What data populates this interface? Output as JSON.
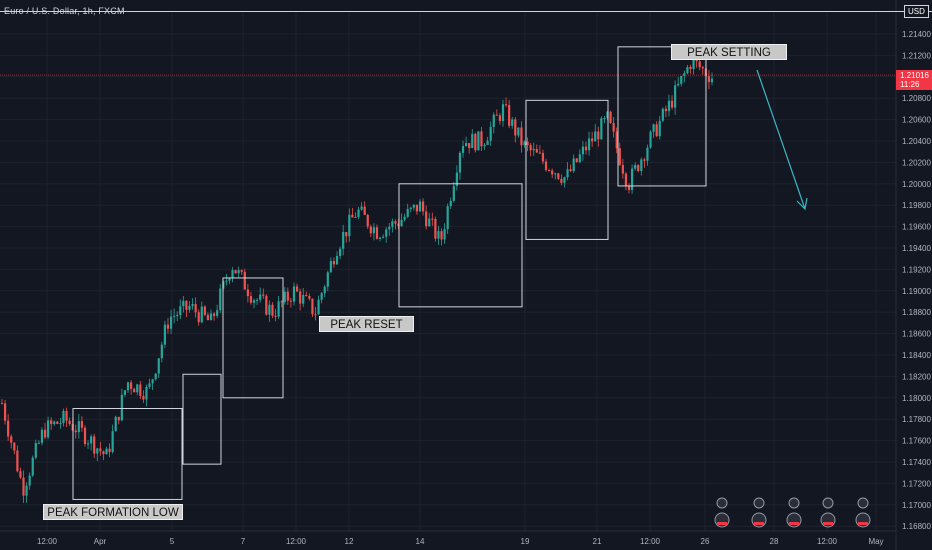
{
  "header": {
    "title": "Euro / U.S. Dollar, 1h, FXCM",
    "currency": "USD"
  },
  "last_price": {
    "value": "1.21016",
    "countdown": "11:26"
  },
  "annotations": {
    "peak_formation_low": "PEAK FORMATION LOW",
    "peak_reset": "PEAK RESET",
    "peak_setting": "PEAK SETTING"
  },
  "chart_data": {
    "type": "candlestick",
    "title": "Euro / U.S. Dollar, 1h, FXCM",
    "ylim": [
      1.167,
      1.216
    ],
    "y_ticks": [
      "1.21400",
      "1.21200",
      "1.21000",
      "1.20800",
      "1.20600",
      "1.20400",
      "1.20200",
      "1.20000",
      "1.19800",
      "1.19600",
      "1.19400",
      "1.19200",
      "1.19000",
      "1.18800",
      "1.18600",
      "1.18400",
      "1.18200",
      "1.18000",
      "1.17800",
      "1.17600",
      "1.17400",
      "1.17200",
      "1.17000",
      "1.16800"
    ],
    "x_ticks": [
      "12:00",
      "Apr",
      "5",
      "7",
      "12:00",
      "12",
      "14",
      "19",
      "21",
      "12:00",
      "26",
      "28",
      "12:00",
      "May"
    ],
    "price_path": [
      [
        "12:00",
        1.1795
      ],
      [
        "Apr",
        1.1715
      ],
      [
        "Apr",
        1.177
      ],
      [
        "Apr",
        1.178
      ],
      [
        "5",
        1.1765
      ],
      [
        "5",
        1.1745
      ],
      [
        "5",
        1.1815
      ],
      [
        "5",
        1.1805
      ],
      [
        "7",
        1.1875
      ],
      [
        "7",
        1.1885
      ],
      [
        "7",
        1.187
      ],
      [
        "12:00",
        1.1925
      ],
      [
        "12:00",
        1.1895
      ],
      [
        "12",
        1.188
      ],
      [
        "12",
        1.19
      ],
      [
        "12",
        1.188
      ],
      [
        "14",
        1.194
      ],
      [
        "14",
        1.1975
      ],
      [
        "14",
        1.1955
      ],
      [
        "14",
        1.1965
      ],
      [
        "19",
        1.198
      ],
      [
        "19",
        1.1945
      ],
      [
        "19",
        1.204
      ],
      [
        "19",
        1.204
      ],
      [
        "21",
        1.207
      ],
      [
        "21",
        1.2035
      ],
      [
        "21",
        1.202
      ],
      [
        "21",
        1.2005
      ],
      [
        "12:00",
        1.2035
      ],
      [
        "12:00",
        1.206
      ],
      [
        "12:00",
        1.2
      ],
      [
        "12:00",
        1.204
      ],
      [
        "26",
        1.2075
      ],
      [
        "26",
        1.2115
      ],
      [
        "26",
        1.21
      ]
    ],
    "last_price": 1.21016,
    "boxes": [
      {
        "from": "Apr",
        "to": "5",
        "low": 1.1705,
        "high": 1.179
      },
      {
        "from": "5",
        "to": "5",
        "low": 1.1738,
        "high": 1.1822
      },
      {
        "from": "7",
        "to": "7",
        "low": 1.18,
        "high": 1.1912
      },
      {
        "from": "12",
        "to": "14",
        "low": 1.1885,
        "high": 1.2
      },
      {
        "from": "19",
        "to": "21",
        "low": 1.1948,
        "high": 1.2078
      },
      {
        "from": "12:00",
        "to": "26",
        "low": 1.1998,
        "high": 1.2128
      }
    ],
    "grid": true,
    "colors": {
      "up": "#26a69a",
      "down": "#ef5350",
      "arrow": "#3cb6c4",
      "grid": "#1e222d",
      "price_line": "#f23645"
    }
  }
}
